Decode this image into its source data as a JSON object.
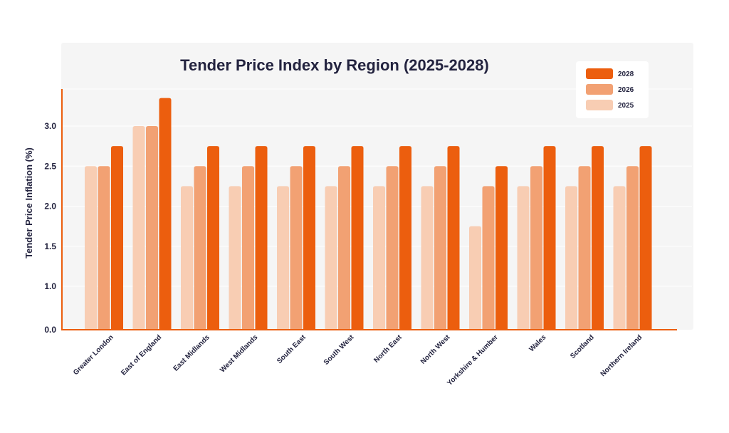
{
  "chart_data": {
    "type": "bar",
    "title": "Tender Price Index by Region (2025-2028)",
    "xlabel": "",
    "ylabel": "Tender Price Inflation (%)",
    "yticks": [
      "0.0",
      "1.0",
      "1.5",
      "2.0",
      "2.5",
      "3.0"
    ],
    "categories": [
      "Greater London",
      "East of England",
      "East Midlands",
      "West Midlands",
      "South East",
      "South West",
      "North East",
      "North West",
      "Yorkshire & Humber",
      "Wales",
      "Scotland",
      "Northern Ireland"
    ],
    "series": [
      {
        "name": "2025",
        "color": "#f8cdb3",
        "values": [
          2.5,
          3.0,
          2.25,
          2.25,
          2.25,
          2.25,
          2.25,
          2.25,
          1.75,
          2.25,
          2.25,
          2.25
        ]
      },
      {
        "name": "2026",
        "color": "#f2a173",
        "values": [
          2.5,
          3.0,
          2.5,
          2.5,
          2.5,
          2.5,
          2.5,
          2.5,
          2.25,
          2.5,
          2.5,
          2.5
        ]
      },
      {
        "name": "2028",
        "color": "#ec5e0e",
        "values": [
          2.75,
          3.35,
          2.75,
          2.75,
          2.75,
          2.75,
          2.75,
          2.75,
          2.5,
          2.75,
          2.75,
          2.75
        ]
      }
    ],
    "legend": {
      "position": "top-right",
      "order": [
        "2028",
        "2026",
        "2025"
      ]
    },
    "grid": true,
    "axis_color": "#ec5e0e",
    "text_color": "#23233f"
  }
}
